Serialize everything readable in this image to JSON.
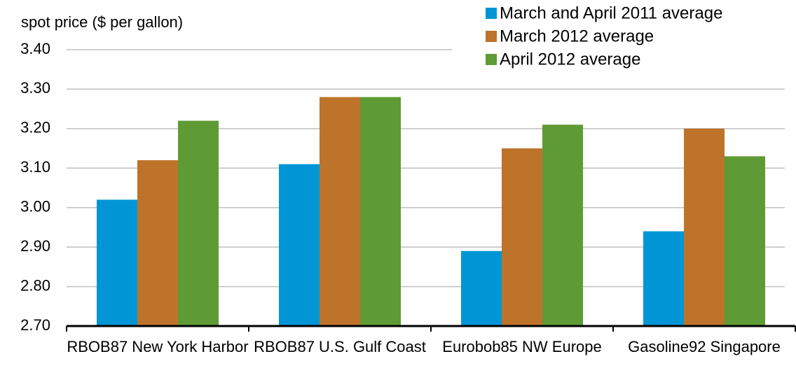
{
  "chart_data": {
    "type": "bar",
    "y_label": "spot price ($ per gallon)",
    "categories": [
      "RBOB87 New York Harbor",
      "RBOB87 U.S. Gulf Coast",
      "Eurobob85 NW Europe",
      "Gasoline92 Singapore"
    ],
    "series": [
      {
        "name": "March and April 2011 average",
        "color": "#0096d6",
        "values": [
          3.02,
          3.11,
          2.89,
          2.94
        ]
      },
      {
        "name": "March 2012 average",
        "color": "#bd732a",
        "values": [
          3.12,
          3.28,
          3.15,
          3.2
        ]
      },
      {
        "name": "April 2012 average",
        "color": "#5e9b35",
        "values": [
          3.22,
          3.28,
          3.21,
          3.13
        ]
      }
    ],
    "ylim": [
      2.7,
      3.4
    ],
    "yticks": [
      {
        "value": 2.7,
        "label": "2.70"
      },
      {
        "value": 2.8,
        "label": "2.80"
      },
      {
        "value": 2.9,
        "label": "2.90"
      },
      {
        "value": 3.0,
        "label": "3.00"
      },
      {
        "value": 3.1,
        "label": "3.10"
      },
      {
        "value": 3.2,
        "label": "3.20"
      },
      {
        "value": 3.3,
        "label": "3.30"
      },
      {
        "value": 3.4,
        "label": "3.40"
      }
    ],
    "grid": true,
    "legend": "top-right"
  }
}
